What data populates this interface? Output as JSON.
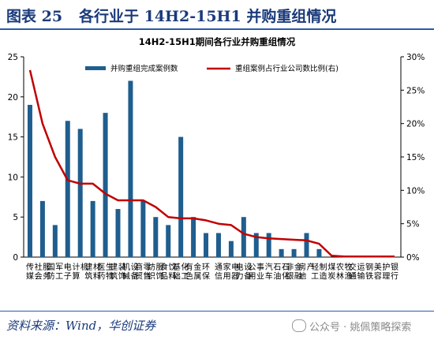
{
  "header": {
    "figure_label": "图表 25",
    "title": "各行业于 14H2-15H1 并购重组情况"
  },
  "source": "资料来源：Wind，华创证券",
  "watermark": "公众号 · 姚佩策略探索",
  "colors": {
    "bar": "#1f5e8e",
    "line": "#c00000",
    "title_blue": "#1a3a7a"
  },
  "chart_data": {
    "type": "bar",
    "title": "14H2-15H1期间各行业并购重组情况",
    "legend_placement": "top",
    "categories": [
      "传媒",
      "社会服务",
      "国防军工",
      "电子",
      "计算机",
      "建筑材料",
      "医药生物",
      "建筑装饰",
      "机械设备",
      "商贸零售",
      "纺织服饰",
      "食品饮料",
      "基础化工",
      "有色金属",
      "环保",
      "通信",
      "家用电器",
      "电力设备",
      "公用事业",
      "汽车",
      "石油石化",
      "非银金融",
      "房地产",
      "轻工制造",
      "煤炭",
      "农林牧渔",
      "交通运输",
      "钢铁",
      "美容护理",
      "银行"
    ],
    "y_left": {
      "range": [
        0,
        25
      ],
      "ticks": [
        "0",
        "5",
        "10",
        "15",
        "20",
        "25"
      ]
    },
    "y_right": {
      "range": [
        0,
        30
      ],
      "ticks": [
        "0%",
        "5%",
        "10%",
        "15%",
        "20%",
        "25%",
        "30%"
      ]
    },
    "series": [
      {
        "name": "并购重组完成案例数",
        "type": "bar",
        "axis": "left",
        "values": [
          19,
          7,
          4,
          17,
          16,
          7,
          18,
          6,
          22,
          7,
          5,
          4,
          15,
          5,
          3,
          3,
          2,
          5,
          3,
          3,
          1,
          1,
          3,
          1,
          0,
          0,
          0,
          0,
          0,
          0
        ]
      },
      {
        "name": "重组案例占行业公司数比例(右)",
        "type": "line",
        "axis": "right",
        "values": [
          28,
          20,
          15,
          11.5,
          11,
          11,
          9.5,
          8.5,
          8.5,
          8.5,
          7.5,
          6,
          5.8,
          5.8,
          5.5,
          5,
          4.8,
          3.5,
          3,
          2.8,
          2.7,
          2.6,
          2.5,
          2,
          0.2,
          0.1,
          0.1,
          0.1,
          0.1,
          0.1
        ]
      }
    ]
  }
}
